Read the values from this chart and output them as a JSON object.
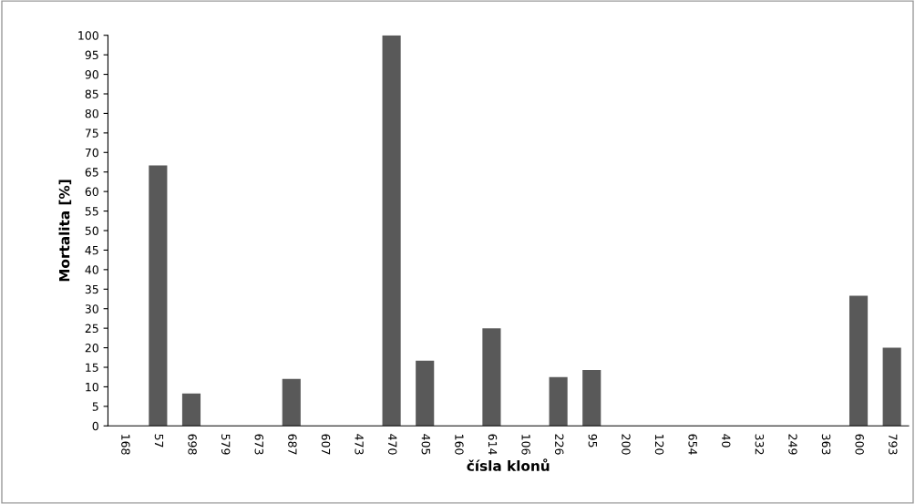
{
  "chart_data": {
    "type": "bar",
    "xlabel": "čísla klonů",
    "ylabel": "Mortalita [%]",
    "categories": [
      "168",
      "57",
      "698",
      "579",
      "673",
      "687",
      "607",
      "473",
      "470",
      "405",
      "160",
      "614",
      "106",
      "226",
      "95",
      "200",
      "120",
      "654",
      "40",
      "332",
      "249",
      "363",
      "600",
      "793"
    ],
    "values": [
      0,
      66.7,
      8.3,
      0,
      0,
      12,
      0,
      0,
      100,
      16.7,
      0,
      25,
      0,
      12.5,
      14.3,
      0,
      0,
      0,
      0,
      0,
      0,
      0,
      33.3,
      20
    ],
    "color": "#595959",
    "ylim": [
      0,
      100
    ],
    "yticks": [
      0,
      5,
      10,
      15,
      20,
      25,
      30,
      35,
      40,
      45,
      50,
      55,
      60,
      65,
      70,
      75,
      80,
      85,
      90,
      95,
      100
    ],
    "grid": false,
    "legend": false
  }
}
